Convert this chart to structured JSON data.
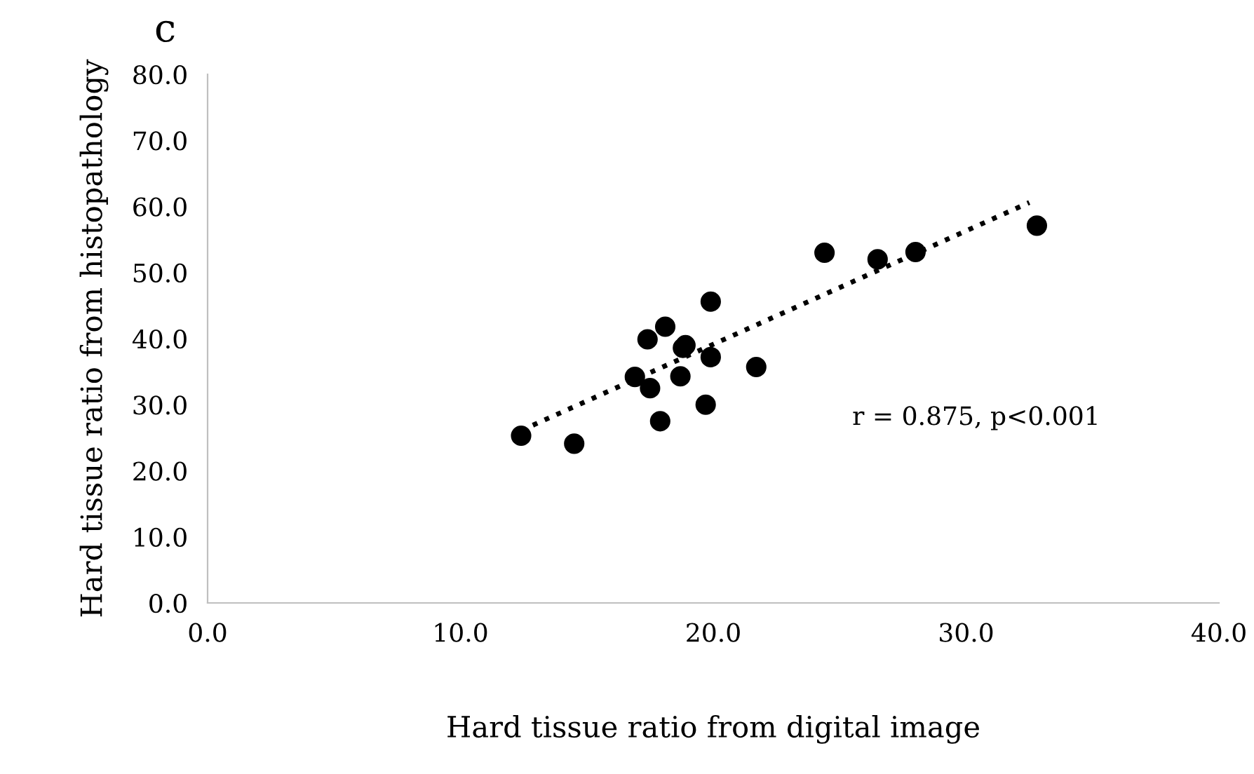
{
  "chart_data": {
    "type": "scatter",
    "title": "c",
    "xlabel": "Hard tissue ratio from digital image",
    "ylabel": "Hard tissue ratio from histopathology",
    "xlim": [
      0,
      40
    ],
    "xticks": [
      {
        "value": 0,
        "label": "0.0"
      },
      {
        "value": 10,
        "label": "10.0"
      },
      {
        "value": 20,
        "label": "20.0"
      },
      {
        "value": 30,
        "label": "30.0"
      },
      {
        "value": 40,
        "label": "40.0"
      }
    ],
    "ylim": [
      0,
      80
    ],
    "yticks": [
      {
        "value": 0,
        "label": "0.0"
      },
      {
        "value": 10,
        "label": "10.0"
      },
      {
        "value": 20,
        "label": "20.0"
      },
      {
        "value": 30,
        "label": "30.0"
      },
      {
        "value": 40,
        "label": "40.0"
      },
      {
        "value": 50,
        "label": "50.0"
      },
      {
        "value": 60,
        "label": "60.0"
      },
      {
        "value": 70,
        "label": "70.0"
      },
      {
        "value": 80,
        "label": "80.0"
      }
    ],
    "grid": false,
    "legend": false,
    "annotations": [
      "r = 0.875, p<0.001"
    ],
    "series": [
      {
        "color": "#000000",
        "marker": "circle",
        "x": [
          12.4,
          14.5,
          16.9,
          17.5,
          17.4,
          18.1,
          17.9,
          18.7,
          18.8,
          18.9,
          19.9,
          19.9,
          19.7,
          21.7,
          24.4,
          26.5,
          28.0,
          32.8
        ],
        "values": [
          25.3,
          24.1,
          34.2,
          32.5,
          39.9,
          41.8,
          27.5,
          34.3,
          38.6,
          39.0,
          45.6,
          37.2,
          30.0,
          35.7,
          53.0,
          52.0,
          53.1,
          57.1
        ]
      },
      {
        "type": "line",
        "color": "#000000",
        "line_style": "dotted",
        "x": [
          12.4,
          32.5
        ],
        "values": [
          26.1,
          60.6
        ]
      }
    ]
  }
}
